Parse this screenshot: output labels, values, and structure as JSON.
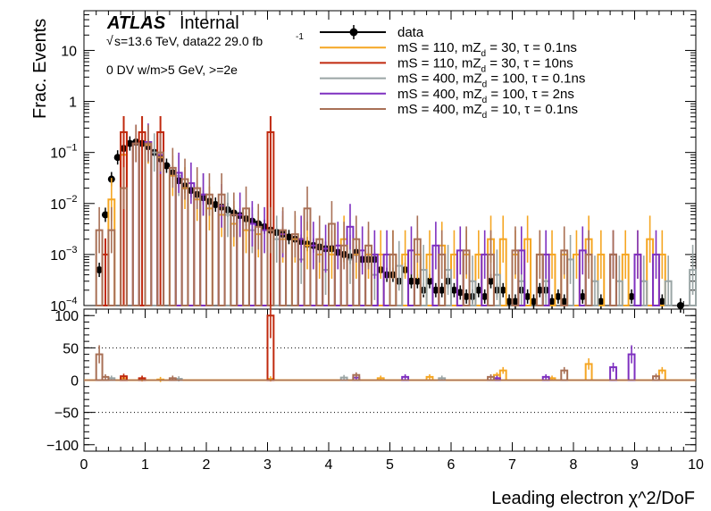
{
  "chart_data": [
    {
      "type": "histogram",
      "panel": "upper",
      "ylabel": "Frac. Events",
      "yscale": "log",
      "ylim": [
        0.0001,
        60
      ],
      "xlim": [
        0,
        10
      ],
      "yticks": [
        {
          "value": 0.0001,
          "label": "10",
          "exp": "−4"
        },
        {
          "value": 0.001,
          "label": "10",
          "exp": "−3"
        },
        {
          "value": 0.01,
          "label": "10",
          "exp": "−2"
        },
        {
          "value": 0.1,
          "label": "10",
          "exp": "−1"
        },
        {
          "value": 1,
          "label": "1",
          "exp": ""
        },
        {
          "value": 10,
          "label": "10",
          "exp": ""
        }
      ],
      "annotations": {
        "atlas": "ATLAS",
        "atlas_suffix": "Internal",
        "energy_root": "√",
        "energy_text": "s=13.6 TeV, data22 29.0 fb",
        "energy_exp": "-1",
        "selection": "0 DV w/m>5 GeV, >=2e"
      },
      "legend": [
        {
          "pre": "data",
          "sub": "",
          "post": "",
          "color": "#000000",
          "marker": true
        },
        {
          "pre": "mS = 110, mZ",
          "sub": "d",
          "post": " = 30, τ = 0.1ns",
          "color": "#f5a623",
          "marker": false
        },
        {
          "pre": "mS = 110, mZ",
          "sub": "d",
          "post": " = 30, τ = 10ns",
          "color": "#c0290e",
          "marker": false
        },
        {
          "pre": "mS = 400, mZ",
          "sub": "d",
          "post": " = 100, τ = 0.1ns",
          "color": "#9aa5a5",
          "marker": false
        },
        {
          "pre": "mS = 400, mZ",
          "sub": "d",
          "post": " = 100, τ = 2ns",
          "color": "#7e30c0",
          "marker": false
        },
        {
          "pre": "mS = 400, mZ",
          "sub": "d",
          "post": " = 10, τ = 0.1ns",
          "color": "#a87056",
          "marker": false
        }
      ],
      "series": [
        {
          "name": "data",
          "color": "#000000",
          "style": "markers",
          "x": [
            0.25,
            0.35,
            0.45,
            0.55,
            0.65,
            0.75,
            0.85,
            0.95,
            1.05,
            1.15,
            1.25,
            1.35,
            1.45,
            1.55,
            1.65,
            1.75,
            1.85,
            1.95,
            2.05,
            2.15,
            2.25,
            2.35,
            2.45,
            2.55,
            2.65,
            2.75,
            2.85,
            2.95,
            3.05,
            3.15,
            3.25,
            3.35,
            3.45,
            3.55,
            3.65,
            3.75,
            3.85,
            3.95,
            4.05,
            4.15,
            4.25,
            4.35,
            4.45,
            4.55,
            4.65,
            4.75,
            4.85,
            4.95,
            5.05,
            5.15,
            5.25,
            5.35,
            5.45,
            5.55,
            5.65,
            5.75,
            5.85,
            5.95,
            6.05,
            6.15,
            6.25,
            6.35,
            6.45,
            6.55,
            6.65,
            6.75,
            6.85,
            6.95,
            7.05,
            7.15,
            7.25,
            7.35,
            7.45,
            7.55,
            7.65,
            7.75,
            7.85,
            8.15,
            8.45,
            8.95,
            9.45,
            9.75
          ],
          "values": [
            0.0005,
            0.006,
            0.03,
            0.08,
            0.12,
            0.15,
            0.16,
            0.15,
            0.13,
            0.1,
            0.075,
            0.055,
            0.04,
            0.028,
            0.022,
            0.018,
            0.015,
            0.013,
            0.011,
            0.0095,
            0.0085,
            0.0075,
            0.0065,
            0.0058,
            0.005,
            0.0045,
            0.004,
            0.0035,
            0.003,
            0.0027,
            0.0025,
            0.0022,
            0.002,
            0.0018,
            0.0016,
            0.0015,
            0.0014,
            0.0013,
            0.0013,
            0.0011,
            0.001,
            0.0009,
            0.0011,
            0.0008,
            0.0008,
            0.0008,
            0.0005,
            0.0004,
            0.0004,
            0.0003,
            0.0005,
            0.0003,
            0.0003,
            0.0002,
            0.0003,
            0.0002,
            0.0002,
            0.0003,
            0.0002,
            0.00018,
            0.00015,
            0.00015,
            0.0002,
            0.00015,
            0.0003,
            0.0002,
            0.0002,
            0.00012,
            0.00012,
            0.0002,
            0.00015,
            0.00012,
            0.0002,
            0.0002,
            0.00012,
            0.00015,
            0.00012,
            0.00015,
            0.00012,
            0.00015,
            0.00012,
            0.0001
          ]
        },
        {
          "name": "mS = 110, mZd = 30, τ = 0.1ns",
          "color": "#f5a623",
          "style": "step",
          "x": [
            0.45,
            0.65,
            0.85,
            1.05,
            1.25,
            1.45,
            1.65,
            1.85,
            2.05,
            2.25,
            2.45,
            2.65,
            2.85,
            3.05,
            3.25,
            3.45,
            3.65,
            3.85,
            4.05,
            4.25,
            4.45,
            4.65,
            4.85,
            5.05,
            5.25,
            5.45,
            5.65,
            5.85,
            6.05,
            6.25,
            6.45,
            6.65,
            6.85,
            7.05,
            7.25,
            7.45,
            7.65,
            7.85,
            8.05,
            8.25,
            8.45,
            8.65,
            8.85,
            9.05,
            9.25,
            9.45
          ],
          "values": [
            0.012,
            0.09,
            0.15,
            0.14,
            0.08,
            0.035,
            0.02,
            0.012,
            0.008,
            0.006,
            0.004,
            0.003,
            0.0025,
            0.003,
            0.002,
            0.002,
            0.0015,
            0.001,
            0.001,
            0.002,
            0.001,
            0.001,
            0.001,
            0.001,
            0.001,
            0.001,
            0.001,
            0.0015,
            0.001,
            0.001,
            0.001,
            0.002,
            0.002,
            0.001,
            0.002,
            0.001,
            0.001,
            0.001,
            0.001,
            0.002,
            0.001,
            0.001,
            0.001,
            0.001,
            0.002,
            0.001
          ]
        },
        {
          "name": "mS = 110, mZd = 30, τ = 10ns",
          "color": "#c0290e",
          "style": "spikes",
          "x": [
            0.35,
            0.65,
            0.95,
            1.25,
            3.05
          ],
          "values": [
            0.001,
            0.25,
            0.25,
            0.25,
            0.25
          ]
        },
        {
          "name": "mS = 400, mZd = 100, τ = 0.1ns",
          "color": "#9aa5a5",
          "style": "step",
          "x": [
            1.15,
            1.55,
            1.95,
            2.35,
            2.75,
            3.15,
            3.55,
            3.95,
            4.35,
            4.75,
            5.15,
            5.55,
            5.95,
            6.35,
            6.75,
            7.15,
            7.55,
            7.95,
            8.35,
            8.75,
            9.15,
            9.55,
            9.95
          ],
          "values": [
            0.1,
            0.035,
            0.015,
            0.006,
            0.003,
            0.002,
            0.0008,
            0.0005,
            0.0008,
            0.0004,
            0.0006,
            0.0005,
            0.0005,
            0.0003,
            0.0004,
            0.0003,
            0.0003,
            0.0008,
            0.0003,
            0.0003,
            0.0003,
            0.0003,
            0.0005
          ]
        },
        {
          "name": "mS = 400, mZd = 100, τ = 2ns",
          "color": "#7e30c0",
          "style": "step",
          "x": [
            0.85,
            1.05,
            1.25,
            1.55,
            1.75,
            1.95,
            2.25,
            2.55,
            2.75,
            2.95,
            3.25,
            3.55,
            3.75,
            3.95,
            4.15,
            4.35,
            4.55,
            4.75,
            4.95,
            5.35,
            5.75,
            6.15,
            6.55,
            7.15,
            7.55,
            8.15,
            8.65,
            9.05,
            9.35
          ],
          "values": [
            0.15,
            0.16,
            0.09,
            0.04,
            0.025,
            0.015,
            0.009,
            0.006,
            0.004,
            0.003,
            0.0025,
            0.002,
            0.0015,
            0.0013,
            0.0015,
            0.0035,
            0.0012,
            0.001,
            0.001,
            0.0012,
            0.0015,
            0.0012,
            0.001,
            0.0012,
            0.001,
            0.0012,
            0.001,
            0.001,
            0.001
          ]
        },
        {
          "name": "mS = 400, mZd = 10, τ = 0.1ns",
          "color": "#a87056",
          "style": "step",
          "x": [
            0.25,
            0.45,
            0.65,
            0.85,
            1.05,
            1.25,
            1.45,
            1.65,
            1.85,
            2.05,
            2.25,
            2.45,
            2.65,
            2.85,
            3.05,
            3.25,
            3.45,
            3.65,
            3.85,
            4.05,
            4.25,
            4.45,
            4.65,
            5.05,
            5.45,
            5.85,
            6.25,
            6.65,
            7.05,
            7.45,
            7.85,
            8.25,
            8.65
          ],
          "values": [
            0.003,
            0.003,
            0.02,
            0.15,
            0.15,
            0.1,
            0.05,
            0.03,
            0.02,
            0.015,
            0.015,
            0.006,
            0.008,
            0.0035,
            0.003,
            0.003,
            0.0025,
            0.008,
            0.002,
            0.004,
            0.0015,
            0.002,
            0.0015,
            0.001,
            0.002,
            0.001,
            0.0012,
            0.001,
            0.0012,
            0.001,
            0.0012,
            0.001,
            0.001
          ]
        }
      ]
    },
    {
      "type": "histogram",
      "panel": "lower",
      "xlabel": "Leading electron χ^2/DoF",
      "xlim": [
        0,
        10
      ],
      "ylim": [
        -110,
        110
      ],
      "xticks": [
        0,
        1,
        2,
        3,
        4,
        5,
        6,
        7,
        8,
        9,
        10
      ],
      "yticks": [
        100,
        50,
        0,
        -50,
        -100
      ],
      "ytick_labels": [
        "100",
        "50",
        "0",
        "−50",
        "−100"
      ],
      "gridlines_y": [
        50,
        0,
        -50
      ],
      "series": [
        {
          "name": "mS = 110, mZd = 30, τ = 0.1ns",
          "color": "#f5a623",
          "x": [
            0.65,
            0.95,
            1.25,
            3.05,
            4.85,
            5.65,
            6.75,
            6.85,
            7.65,
            8.25,
            9.45
          ],
          "values": [
            3,
            2,
            1,
            2,
            3,
            5,
            8,
            15,
            3,
            25,
            15
          ]
        },
        {
          "name": "mS = 110, mZd = 30, τ = 10ns",
          "color": "#c0290e",
          "x": [
            0.65,
            0.95,
            3.05
          ],
          "values": [
            6,
            3,
            100
          ]
        },
        {
          "name": "mS = 400, mZd = 100, τ = 0.1ns",
          "color": "#9aa5a5",
          "x": [
            0.45,
            1.55,
            4.25,
            5.85
          ],
          "values": [
            3,
            2,
            4,
            3
          ]
        },
        {
          "name": "mS = 400, mZd = 100, τ = 2ns",
          "color": "#7e30c0",
          "x": [
            4.45,
            5.25,
            6.75,
            7.55,
            8.65,
            8.95
          ],
          "values": [
            4,
            5,
            3,
            5,
            20,
            40
          ]
        },
        {
          "name": "mS = 400, mZd = 10, τ = 0.1ns",
          "color": "#a87056",
          "x": [
            0.25,
            0.35,
            1.45,
            4.45,
            6.65,
            7.85,
            9.35
          ],
          "values": [
            40,
            5,
            3,
            8,
            5,
            15,
            6
          ]
        }
      ]
    }
  ]
}
